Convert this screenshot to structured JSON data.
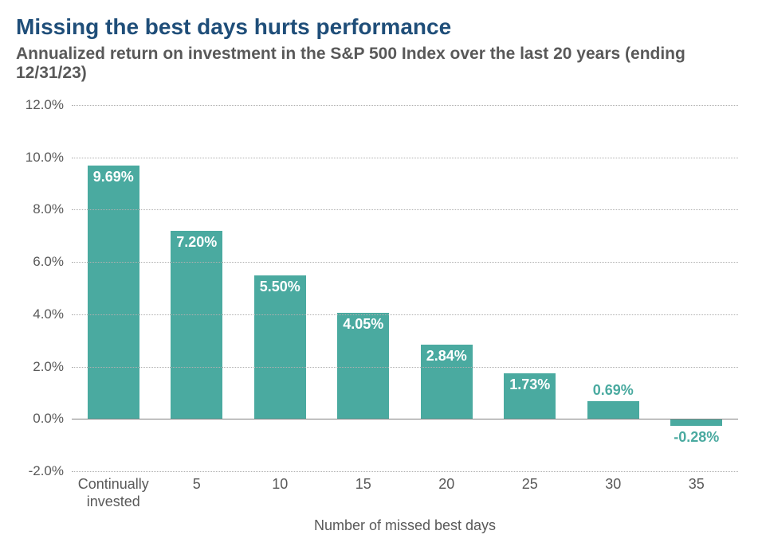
{
  "title": {
    "text": "Missing the best days hurts performance",
    "color": "#1f4e79",
    "fontsize": 28,
    "fontweight": 700
  },
  "subtitle": {
    "text": "Annualized return on investment in the S&P 500 Index over the last 20 years (ending 12/31/23)",
    "color": "#595959",
    "fontsize": 21,
    "fontweight": 600
  },
  "chart": {
    "type": "bar",
    "categories": [
      "Continually\ninvested",
      "5",
      "10",
      "15",
      "20",
      "25",
      "30",
      "35"
    ],
    "values": [
      9.69,
      7.2,
      5.5,
      4.05,
      2.84,
      1.73,
      0.69,
      -0.28
    ],
    "value_labels": [
      "9.69%",
      "7.20%",
      "5.50%",
      "4.05%",
      "2.84%",
      "1.73%",
      "0.69%",
      "-0.28%"
    ],
    "bar_color": "#4aaaa0",
    "bar_width": 0.62,
    "value_label_color_inside": "#ffffff",
    "value_label_color_outside": "#4aaaa0",
    "value_label_fontsize": 18,
    "value_label_fontweight": 700,
    "ylim": [
      -2,
      12
    ],
    "ytick_step": 2,
    "ytick_labels": [
      "-2.0%",
      "0.0%",
      "2.0%",
      "4.0%",
      "6.0%",
      "8.0%",
      "10.0%",
      "12.0%"
    ],
    "ytick_values": [
      -2,
      0,
      2,
      4,
      6,
      8,
      10,
      12
    ],
    "ytick_color": "#595959",
    "ytick_fontsize": 17,
    "grid_color": "#b0b0b0",
    "grid_style": "dotted",
    "zero_line_color": "#808080",
    "background_color": "#ffffff",
    "x_axis_title": "Number of missed best days",
    "x_axis_title_color": "#595959",
    "x_axis_title_fontsize": 18,
    "x_label_color": "#595959",
    "x_label_fontsize": 18
  }
}
